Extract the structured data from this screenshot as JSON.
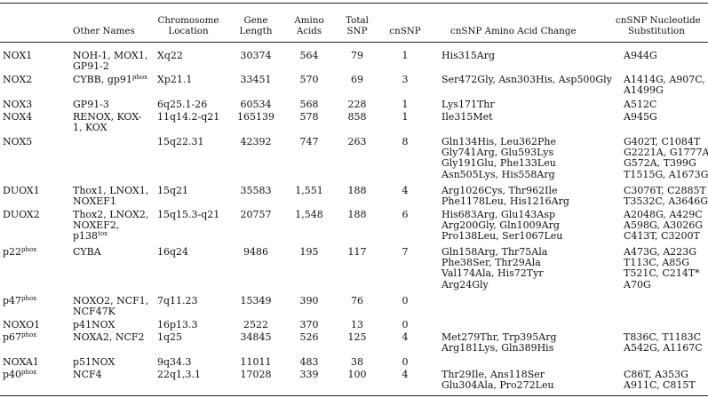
{
  "headers": {
    "other_names": "Other Names",
    "chromosome_location": [
      "Chromosome",
      "Location"
    ],
    "gene_length": [
      "Gene",
      "Length"
    ],
    "amino_acids": [
      "Amino",
      "Acids"
    ],
    "total_snp": [
      "Total",
      "SNP"
    ],
    "cnsnp": "cnSNP",
    "aa_change": "cnSNP Amino Acid Change",
    "nt_sub": [
      "cnSNP Nucleotide",
      "Substitution"
    ]
  },
  "rows": [
    {
      "gene": "NOX1",
      "gene_sup": "",
      "names": [
        "NOH-1, MOX1,",
        "GP91-2"
      ],
      "location": "Xq22",
      "length": "30374",
      "aa": "564",
      "snp": "79",
      "cnsnp": "1",
      "aa_changes": [
        "His315Arg"
      ],
      "nt_subs": [
        "A944G"
      ]
    },
    {
      "gene": "NOX2",
      "gene_sup": "",
      "names": [
        "CYBB, gp91"
      ],
      "names_sup": "phox",
      "location": "Xp21.1",
      "length": "33451",
      "aa": "570",
      "snp": "69",
      "cnsnp": "3",
      "aa_changes": [
        "Ser472Gly, Asn303His, Asp500Gly"
      ],
      "nt_subs": [
        "A1414G, A907C,",
        "A1499G"
      ]
    },
    {
      "gene": "NOX3",
      "gene_sup": "",
      "names": [
        "GP91-3"
      ],
      "location": "6q25.1-26",
      "length": "60534",
      "aa": "568",
      "snp": "228",
      "cnsnp": "1",
      "aa_changes": [
        "Lys171Thr"
      ],
      "nt_subs": [
        "A512C"
      ]
    },
    {
      "gene": "NOX4",
      "gene_sup": "",
      "names": [
        "RENOX, KOX-",
        "1, KOX"
      ],
      "location": "11q14.2-q21",
      "length": "165139",
      "aa": "578",
      "snp": "858",
      "cnsnp": "1",
      "aa_changes": [
        "Ile315Met"
      ],
      "nt_subs": [
        "A945G"
      ]
    },
    {
      "gene": "NOX5",
      "gene_sup": "",
      "names": [],
      "location": "15q22.31",
      "length": "42392",
      "aa": "747",
      "snp": "263",
      "cnsnp": "8",
      "aa_changes": [
        "Gln134His, Leu362Phe",
        "Gly741Arg, Glu593Lys",
        "Gly191Glu, Phe133Leu",
        "Asn505Lys, His558Arg"
      ],
      "nt_subs": [
        "G402T, C1084T",
        "G2221A, G1777A",
        "G572A, T399G",
        "T1515G, A1673G"
      ]
    },
    {
      "gene": "DUOX1",
      "gene_sup": "",
      "names": [
        "Thox1, LNOX1,",
        "NOXEF1"
      ],
      "location": "15q21",
      "length": "35583",
      "aa": "1,551",
      "snp": "188",
      "cnsnp": "4",
      "aa_changes": [
        "Arg1026Cys, Thr962Ile",
        "Phe1178Leu, His1216Arg"
      ],
      "nt_subs": [
        "C3076T, C2885T",
        "T3532C, A3646G"
      ]
    },
    {
      "gene": "DUOX2",
      "gene_sup": "",
      "names": [
        "Thox2, LNOX2,",
        "NOXEF2,",
        "p138"
      ],
      "names_sup": "tox",
      "location": "15q15.3-q21",
      "length": "20757",
      "aa": "1,548",
      "snp": "188",
      "cnsnp": "6",
      "aa_changes": [
        "His683Arg, Glu143Asp",
        "Arg200Gly, Gln1009Arg",
        "Pro138Leu, Ser1067Leu"
      ],
      "nt_subs": [
        "A2048G, A429C",
        "A598G, A3026G",
        "C413T, C3200T"
      ]
    },
    {
      "gene": "p22",
      "gene_sup": "phox",
      "names": [
        "CYBA"
      ],
      "location": "16q24",
      "length": "9486",
      "aa": "195",
      "snp": "117",
      "cnsnp": "7",
      "aa_changes": [
        "Gln158Arg, Thr75Ala",
        "Phe38Ser, Thr29Ala",
        "Val174Ala, His72Tyr",
        "Arg24Gly"
      ],
      "nt_subs": [
        "A473G, A223G",
        "T113C, A85G",
        "T521C, C214T*",
        "A70G"
      ]
    },
    {
      "gene": "p47",
      "gene_sup": "phox",
      "names": [
        "NOXO2, NCF1,",
        "NCF47K"
      ],
      "location": "7q11.23",
      "length": "15349",
      "aa": "390",
      "snp": "76",
      "cnsnp": "0",
      "aa_changes": [],
      "nt_subs": []
    },
    {
      "gene": "NOXO1",
      "gene_sup": "",
      "names": [
        "p41NOX"
      ],
      "location": "16p13.3",
      "length": "2522",
      "aa": "370",
      "snp": "13",
      "cnsnp": "0",
      "aa_changes": [],
      "nt_subs": []
    },
    {
      "gene": "p67",
      "gene_sup": "phox",
      "names": [
        "NOXA2, NCF2"
      ],
      "location": "1q25",
      "length": "34845",
      "aa": "526",
      "snp": "125",
      "cnsnp": "4",
      "aa_changes": [
        "Met279Thr, Trp395Arg",
        "Arg181Lys, Gln389His"
      ],
      "nt_subs": [
        "T836C, T1183C",
        "A542G, A1167C"
      ]
    },
    {
      "gene": "NOXA1",
      "gene_sup": "",
      "names": [
        "p51NOX"
      ],
      "location": "9q34.3",
      "length": "11011",
      "aa": "483",
      "snp": "38",
      "cnsnp": "0",
      "aa_changes": [],
      "nt_subs": []
    },
    {
      "gene": "p40",
      "gene_sup": "phox",
      "names": [
        "NCF4"
      ],
      "location": "22q1,3.1",
      "length": "17028",
      "aa": "339",
      "snp": "100",
      "cnsnp": "4",
      "aa_changes": [
        "Thr29Ile, Ans118Ser",
        "Glu304Ala, Pro272Leu"
      ],
      "nt_subs": [
        "C86T, A353G",
        "A911C, C815T"
      ]
    }
  ]
}
